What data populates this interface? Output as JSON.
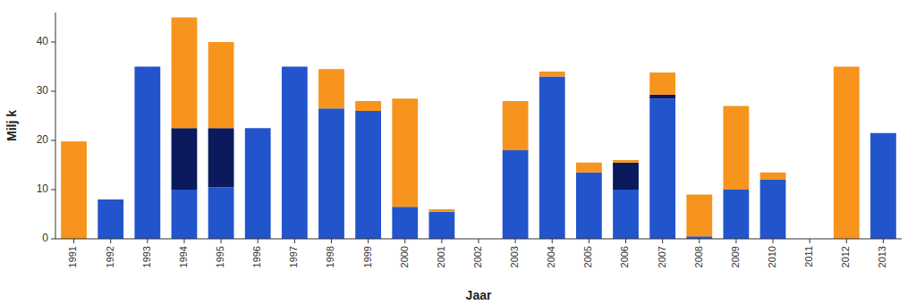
{
  "chart_data": {
    "type": "bar",
    "stacked": true,
    "grid": false,
    "xlabel": "Jaar",
    "ylabel": "Milj k",
    "categories": [
      "1991",
      "1992",
      "1993",
      "1994",
      "1995",
      "1996",
      "1997",
      "1998",
      "1999",
      "2000",
      "2001",
      "2002",
      "2003",
      "2004",
      "2005",
      "2006",
      "2007",
      "2008",
      "2009",
      "2010",
      "2011",
      "2012",
      "2013"
    ],
    "series": [
      {
        "color": "#2255CC",
        "values": [
          0.0,
          8.0,
          35.0,
          10.0,
          10.5,
          22.5,
          35.0,
          26.5,
          26.0,
          6.5,
          5.5,
          0.0,
          18.0,
          33.0,
          13.5,
          10.0,
          28.5,
          0.5,
          10.0,
          12.0,
          0.0,
          0.0,
          21.5
        ]
      },
      {
        "color": "#0A1A5C",
        "values": [
          null,
          null,
          null,
          12.5,
          12.0,
          null,
          null,
          null,
          null,
          null,
          null,
          null,
          null,
          null,
          null,
          5.5,
          0.8,
          null,
          null,
          null,
          null,
          null,
          null
        ]
      },
      {
        "color": "#F7941D",
        "values": [
          19.8,
          0.0,
          0.0,
          22.5,
          17.5,
          0.0,
          0.0,
          8.0,
          2.0,
          22.0,
          0.5,
          0.0,
          10.0,
          1.0,
          2.0,
          0.5,
          4.5,
          8.5,
          17.0,
          1.5,
          0.0,
          35.0,
          0.0
        ]
      }
    ],
    "ylim": [
      0,
      46
    ],
    "yticks": [
      0,
      10,
      20,
      30,
      40
    ]
  }
}
